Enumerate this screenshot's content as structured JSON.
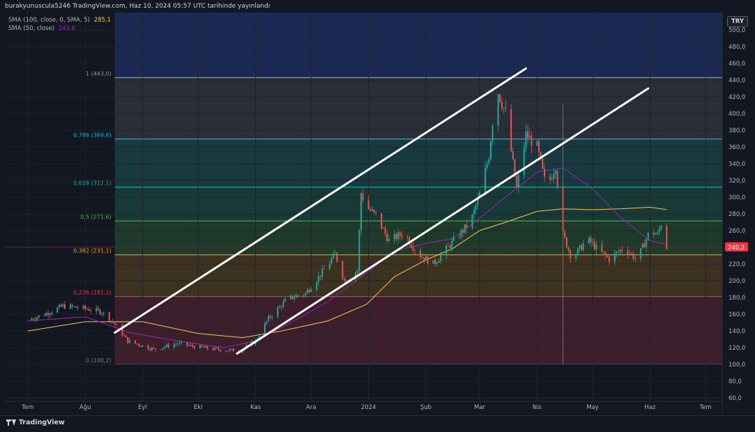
{
  "header": {
    "publisher_line": "burakyunuscula5246 TradingView.com, Haz 10, 2024 05:57 UTC tarihinde yayınlandı"
  },
  "legend": [
    {
      "name": "SMA (100, close, 0, SMA, 5)",
      "value": "285,1",
      "color": "#f7c948"
    },
    {
      "name": "SMA (50, close)",
      "value": "243,6",
      "color": "#9c27b0"
    }
  ],
  "currency_button": "TRY",
  "last_price_label": "240,2",
  "brand": "TradingView",
  "colors": {
    "background": "#131722",
    "up": "#26a69a",
    "down": "#ef5350",
    "sma100": "#f7c948",
    "sma50": "#9c27b0",
    "trend": "#ffffff"
  },
  "icons": [
    "tradingview-logo-icon"
  ],
  "chart_data": {
    "type": "candlestick",
    "y_axis": {
      "min": 60,
      "max": 500,
      "ticks": [
        60,
        80,
        100,
        120,
        140,
        160,
        180,
        200,
        220,
        240,
        260,
        280,
        300,
        320,
        340,
        360,
        380,
        400,
        420,
        440,
        460,
        480,
        500
      ],
      "tick_labels": [
        "60,0",
        "80,0",
        "100,0",
        "120,0",
        "140,0",
        "160,0",
        "180,0",
        "200,0",
        "220,0",
        "240,0",
        "260,0",
        "280,0",
        "300,0",
        "320,0",
        "340,0",
        "360,0",
        "380,0",
        "400,0",
        "420,0",
        "440,0",
        "460,0",
        "480,0",
        "500,0"
      ]
    },
    "x_axis": {
      "labels": [
        {
          "text": "Tem",
          "date": "2023-07-01"
        },
        {
          "text": "Ağu",
          "date": "2023-08-01"
        },
        {
          "text": "Eyl",
          "date": "2023-09-01"
        },
        {
          "text": "Eki",
          "date": "2023-10-01"
        },
        {
          "text": "Kas",
          "date": "2023-11-01"
        },
        {
          "text": "Ara",
          "date": "2023-12-01"
        },
        {
          "text": "2024",
          "date": "2024-01-01"
        },
        {
          "text": "Şub",
          "date": "2024-02-01"
        },
        {
          "text": "Mar",
          "date": "2024-03-01"
        },
        {
          "text": "Nis",
          "date": "2024-04-01"
        },
        {
          "text": "May",
          "date": "2024-05-01"
        },
        {
          "text": "Haz",
          "date": "2024-06-01"
        },
        {
          "text": "Tem",
          "date": "2024-07-01"
        }
      ]
    },
    "fib_levels": [
      {
        "label": "1 (443,0)",
        "value": 443,
        "color": "#9598a1",
        "fill": "#2a2e39"
      },
      {
        "label": "0,786 (369,6)",
        "value": 369.6,
        "color": "#00bcd4",
        "fill": "#17393f"
      },
      {
        "label": "0,618 (312,1)",
        "value": 312.1,
        "color": "#26a69a",
        "fill": "#173a36"
      },
      {
        "label": "0,5 (271,6)",
        "value": 271.6,
        "color": "#4caf50",
        "fill": "#1d3a2a"
      },
      {
        "label": "0,382 (231,1)",
        "value": 231.1,
        "color": "#ff9800",
        "fill": "#3d3220"
      },
      {
        "label": "0,236 (181,1)",
        "value": 181.1,
        "color": "#f23645",
        "fill": "#3d1f2c"
      },
      {
        "label": "0 (100,2)",
        "value": 100.2,
        "color": "#787b86",
        "fill": ""
      }
    ],
    "fib_top_fill": "#1a2952",
    "fib_start_date": "2023-08-17",
    "trend_lines": [
      {
        "start": [
          "2023-08-17",
          138
        ],
        "end": [
          "2024-03-26",
          454
        ]
      },
      {
        "start": [
          "2023-10-22",
          113
        ],
        "end": [
          "2024-05-31",
          430
        ]
      }
    ],
    "vertical_marker": {
      "date": "2024-04-15",
      "price_range": [
        100,
        411
      ]
    },
    "price_path": [
      [
        "2023-07-01",
        153
      ],
      [
        "2023-07-10",
        160
      ],
      [
        "2023-07-20",
        170
      ],
      [
        "2023-07-31",
        167
      ],
      [
        "2023-08-10",
        163
      ],
      [
        "2023-08-17",
        148
      ],
      [
        "2023-08-24",
        128
      ],
      [
        "2023-09-07",
        118
      ],
      [
        "2023-09-20",
        125
      ],
      [
        "2023-09-30",
        121
      ],
      [
        "2023-10-15",
        117
      ],
      [
        "2023-10-24",
        117
      ],
      [
        "2023-11-01",
        128
      ],
      [
        "2023-11-08",
        155
      ],
      [
        "2023-11-18",
        178
      ],
      [
        "2023-11-28",
        185
      ],
      [
        "2023-12-08",
        213
      ],
      [
        "2023-12-14",
        232
      ],
      [
        "2023-12-19",
        200
      ],
      [
        "2023-12-26",
        212
      ],
      [
        "2023-12-28",
        305
      ],
      [
        "2023-12-31",
        288
      ],
      [
        "2024-01-05",
        278
      ],
      [
        "2024-01-12",
        248
      ],
      [
        "2024-01-20",
        257
      ],
      [
        "2024-01-28",
        232
      ],
      [
        "2024-02-05",
        220
      ],
      [
        "2024-02-18",
        253
      ],
      [
        "2024-02-25",
        270
      ],
      [
        "2024-03-01",
        303
      ],
      [
        "2024-03-06",
        350
      ],
      [
        "2024-03-10",
        432
      ],
      [
        "2024-03-15",
        400
      ],
      [
        "2024-03-21",
        310
      ],
      [
        "2024-03-26",
        375
      ],
      [
        "2024-04-01",
        360
      ],
      [
        "2024-04-06",
        310
      ],
      [
        "2024-04-11",
        338
      ],
      [
        "2024-04-15",
        255
      ],
      [
        "2024-04-20",
        226
      ],
      [
        "2024-04-28",
        250
      ],
      [
        "2024-05-05",
        235
      ],
      [
        "2024-05-10",
        226
      ],
      [
        "2024-05-18",
        240
      ],
      [
        "2024-05-25",
        225
      ],
      [
        "2024-06-01",
        260
      ],
      [
        "2024-06-05",
        255
      ],
      [
        "2024-06-08",
        275
      ],
      [
        "2024-06-10",
        240.2
      ]
    ],
    "sma100": [
      [
        "2023-07-01",
        140
      ],
      [
        "2023-08-01",
        151
      ],
      [
        "2023-09-01",
        151
      ],
      [
        "2023-10-01",
        137
      ],
      [
        "2023-10-25",
        132
      ],
      [
        "2023-11-15",
        140
      ],
      [
        "2023-12-10",
        152
      ],
      [
        "2023-12-31",
        172
      ],
      [
        "2024-01-15",
        205
      ],
      [
        "2024-02-01",
        225
      ],
      [
        "2024-02-15",
        238
      ],
      [
        "2024-03-01",
        260
      ],
      [
        "2024-03-15",
        270
      ],
      [
        "2024-04-01",
        283
      ],
      [
        "2024-04-15",
        286
      ],
      [
        "2024-05-01",
        285
      ],
      [
        "2024-05-15",
        286
      ],
      [
        "2024-06-01",
        288
      ],
      [
        "2024-06-10",
        285.1
      ]
    ],
    "sma50": [
      [
        "2023-07-01",
        152
      ],
      [
        "2023-08-01",
        157
      ],
      [
        "2023-08-25",
        138
      ],
      [
        "2023-09-20",
        128
      ],
      [
        "2023-10-15",
        120
      ],
      [
        "2023-11-01",
        128
      ],
      [
        "2023-11-20",
        150
      ],
      [
        "2023-12-10",
        175
      ],
      [
        "2023-12-31",
        210
      ],
      [
        "2024-01-15",
        235
      ],
      [
        "2024-02-01",
        245
      ],
      [
        "2024-02-15",
        250
      ],
      [
        "2024-03-01",
        275
      ],
      [
        "2024-03-15",
        300
      ],
      [
        "2024-04-01",
        330
      ],
      [
        "2024-04-15",
        335
      ],
      [
        "2024-05-01",
        310
      ],
      [
        "2024-05-15",
        278
      ],
      [
        "2024-06-01",
        248
      ],
      [
        "2024-06-10",
        243.6
      ]
    ]
  }
}
